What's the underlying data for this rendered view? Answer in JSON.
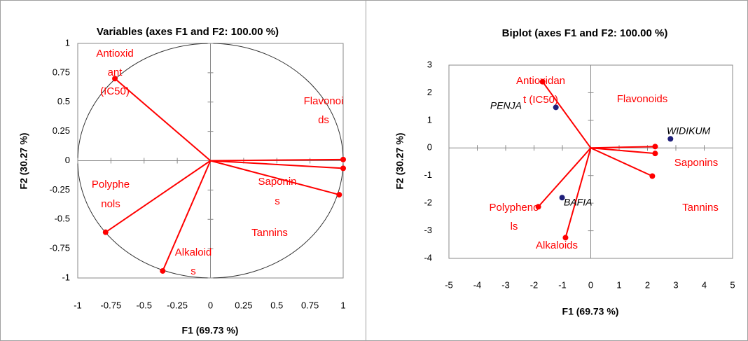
{
  "chart_data": [
    {
      "type": "biplot",
      "title": "Variables (axes F1 and F2: 100.00 %)",
      "x_label": "F1 (69.73 %)",
      "y_label": "F2 (30.27 %)",
      "xlim": [
        -1,
        1
      ],
      "ylim": [
        -1,
        1
      ],
      "xticks": [
        -1,
        -0.75,
        -0.5,
        -0.25,
        0,
        0.25,
        0.5,
        0.75,
        1
      ],
      "yticks": [
        -1,
        -0.75,
        -0.5,
        -0.25,
        0,
        0.25,
        0.5,
        0.75,
        1
      ],
      "circle": true,
      "vector_color": "#ff0000",
      "variables": [
        {
          "label": [
            "Antioxid",
            "ant",
            "(IC50)"
          ],
          "x": -0.72,
          "y": 0.7
        },
        {
          "label": [
            "Flavonoi",
            "ds"
          ],
          "x": 1.0,
          "y": 0.01
        },
        {
          "label": [
            "Saponin",
            "s"
          ],
          "x": 1.0,
          "y": -0.065
        },
        {
          "label": [
            "Tannins"
          ],
          "x": 0.97,
          "y": -0.29
        },
        {
          "label": [
            "Polyphe",
            "nols"
          ],
          "x": -0.79,
          "y": -0.61
        },
        {
          "label": [
            "Alkaloid",
            "s"
          ],
          "x": -0.36,
          "y": -0.94
        }
      ]
    },
    {
      "type": "biplot",
      "title": "Biplot (axes F1 and F2: 100.00 %)",
      "x_label": "F1 (69.73 %)",
      "y_label": "F2 (30.27 %)",
      "xlim": [
        -5,
        5
      ],
      "ylim": [
        -4,
        3
      ],
      "xticks": [
        -5,
        -4,
        -3,
        -2,
        -1,
        0,
        1,
        2,
        3,
        4,
        5
      ],
      "yticks": [
        -4,
        -3,
        -2,
        -1,
        0,
        1,
        2,
        3
      ],
      "circle": false,
      "vector_color": "#ff0000",
      "observation_color": "#1f1f7a",
      "variables": [
        {
          "label": [
            "Antioxidan",
            "t (IC50)"
          ],
          "x": -1.7,
          "y": 2.4
        },
        {
          "label": [
            "Flavonoids"
          ],
          "x": 2.27,
          "y": 0.05
        },
        {
          "label": [
            "Saponins"
          ],
          "x": 2.27,
          "y": -0.2
        },
        {
          "label": [
            "Tannins"
          ],
          "x": 2.17,
          "y": -1.02
        },
        {
          "label": [
            "Polypheno",
            "ls"
          ],
          "x": -1.85,
          "y": -2.13
        },
        {
          "label": [
            "Alkaloids"
          ],
          "x": -0.89,
          "y": -3.25
        }
      ],
      "observations": [
        {
          "label": "PENJA",
          "x": -1.23,
          "y": 1.47
        },
        {
          "label": "WIDIKUM",
          "x": 2.81,
          "y": 0.33
        },
        {
          "label": "BAFIA",
          "x": -1.01,
          "y": -1.8
        }
      ]
    }
  ]
}
